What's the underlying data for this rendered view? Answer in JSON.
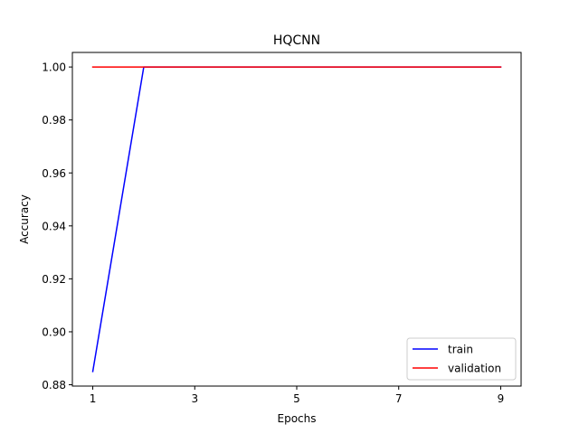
{
  "chart_data": {
    "type": "line",
    "title": "HQCNN",
    "xlabel": "Epochs",
    "ylabel": "Accuracy",
    "xlim": [
      0.6,
      9.4
    ],
    "ylim": [
      0.8795,
      1.0055
    ],
    "xticks": [
      1,
      3,
      5,
      7,
      9
    ],
    "yticks": [
      0.88,
      0.9,
      0.92,
      0.94,
      0.96,
      0.98,
      1.0
    ],
    "ytick_labels": [
      "0.88",
      "0.90",
      "0.92",
      "0.94",
      "0.96",
      "0.98",
      "1.00"
    ],
    "grid": false,
    "legend_position": "lower-right",
    "x": [
      1,
      2,
      3,
      4,
      5,
      6,
      7,
      8,
      9
    ],
    "series": [
      {
        "name": "train",
        "color": "#0000ff",
        "values": [
          0.885,
          1.0,
          1.0,
          1.0,
          1.0,
          1.0,
          1.0,
          1.0,
          1.0
        ]
      },
      {
        "name": "validation",
        "color": "#ff0000",
        "values": [
          1.0,
          1.0,
          1.0,
          1.0,
          1.0,
          1.0,
          1.0,
          1.0,
          1.0
        ]
      }
    ]
  }
}
